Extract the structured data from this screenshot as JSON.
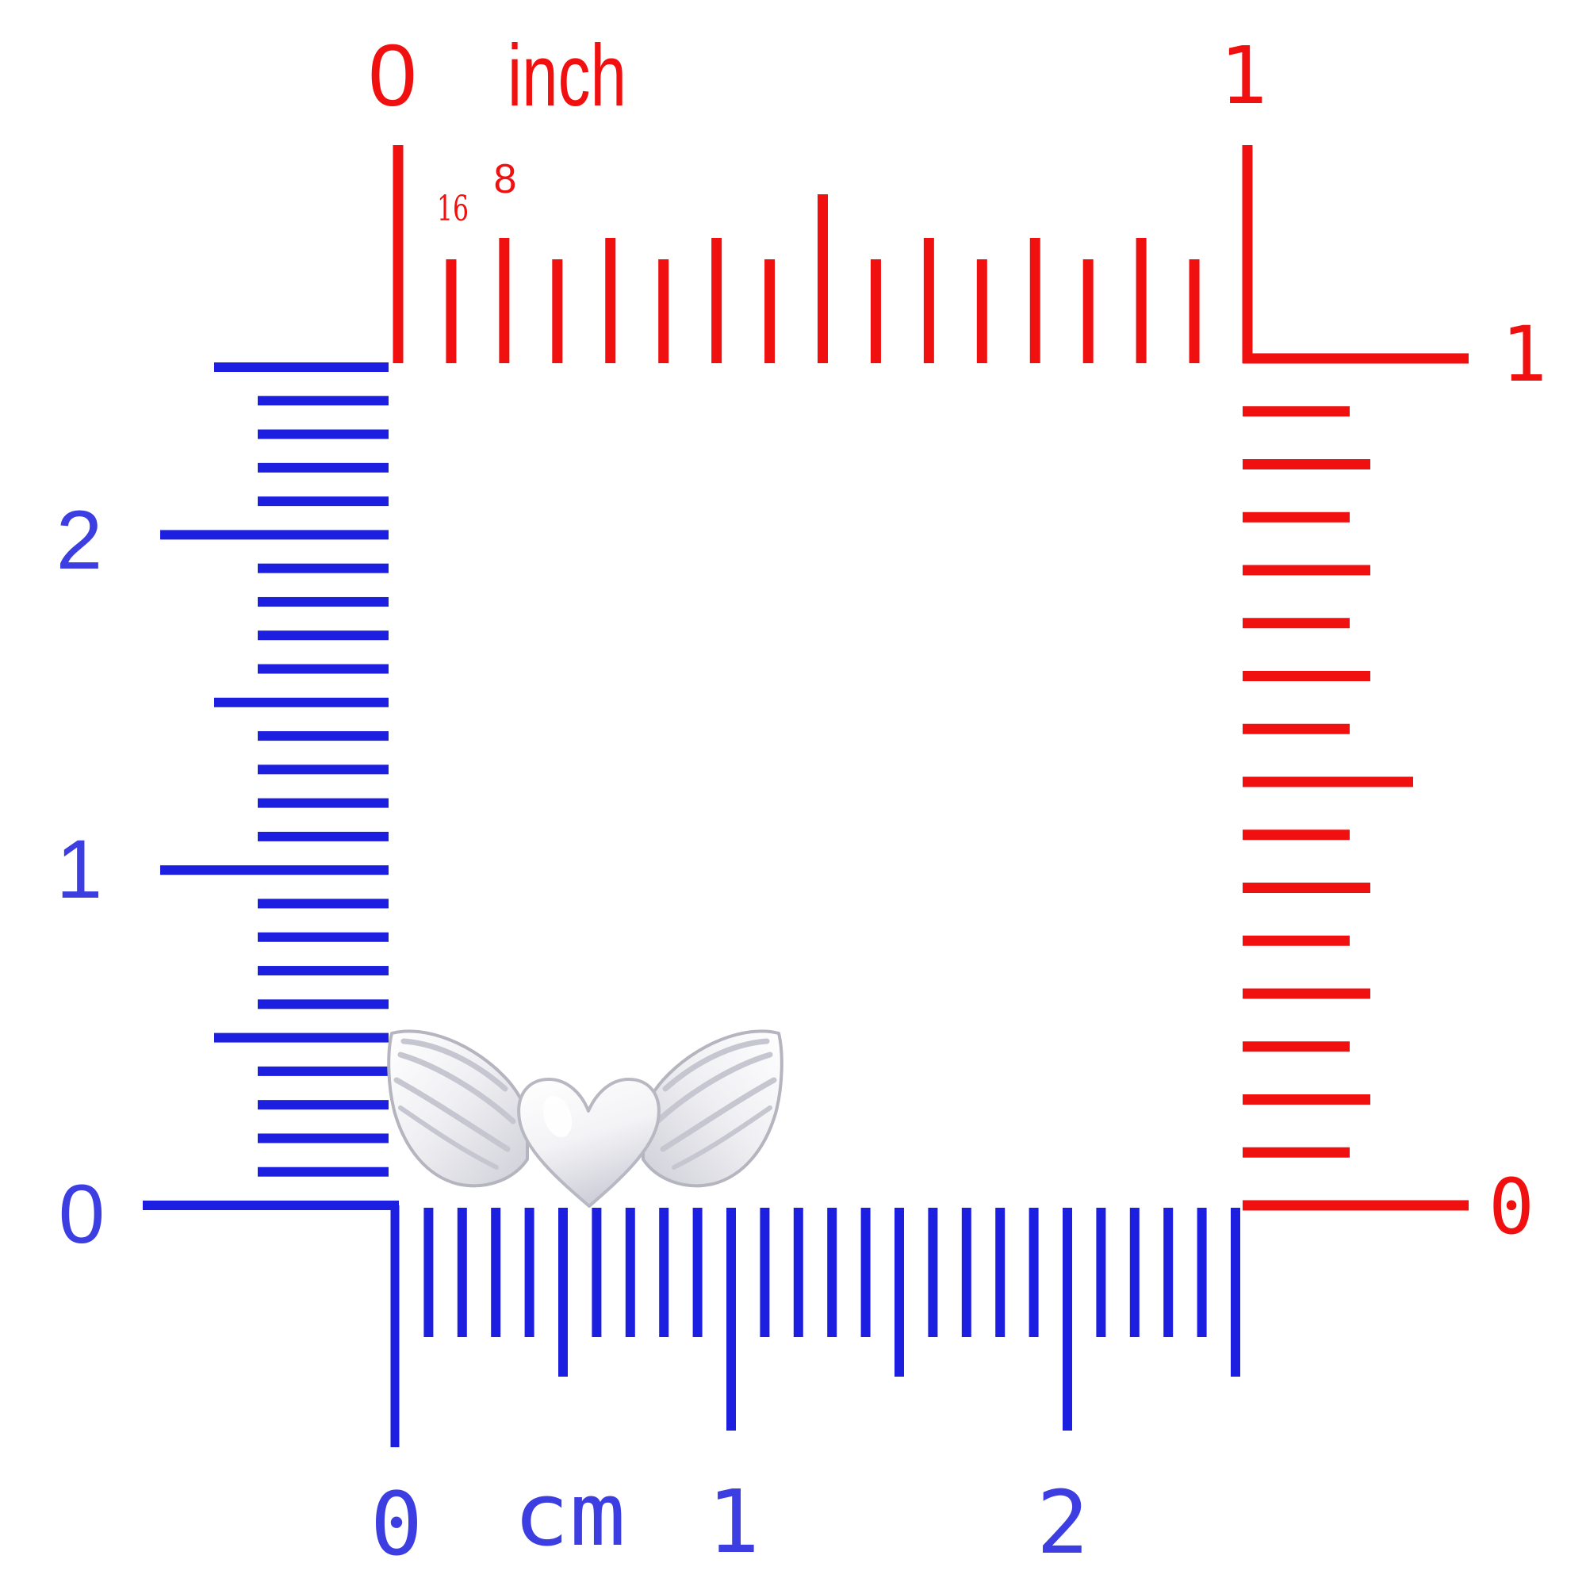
{
  "image_kind": "product size chart with rulers",
  "colors": {
    "background": "#ffffff",
    "inch_red": "#f0100f",
    "cm_blue_tick": "#1c1fe0",
    "cm_blue_label": "#3d3ee2",
    "silver_light": "#ffffff",
    "silver_mid": "#eeeef2",
    "silver_dark": "#cdcdd6",
    "silver_edge": "#b5b5c0"
  },
  "rulers": {
    "top_inch": {
      "orientation": "horizontal",
      "start_label": "0",
      "unit_label": "inch",
      "end_label": "1",
      "sixteenths_label": "16",
      "eighths_label": "8",
      "divisions_per_inch": 16
    },
    "right_inch": {
      "orientation": "vertical",
      "top_label": "1",
      "bottom_label": "0",
      "divisions_per_inch": 16
    },
    "left_cm": {
      "orientation": "vertical",
      "labels_top_to_bottom": [
        "2",
        "1",
        "0"
      ],
      "total_mm": 25,
      "mm_per_cm": 10
    },
    "bottom_cm": {
      "orientation": "horizontal",
      "zero_label": "0",
      "unit_label": "cm",
      "one_label": "1",
      "two_label": "2",
      "total_mm": 25,
      "mm_per_cm": 10
    }
  },
  "product": {
    "name": "silver-winged-heart-charm",
    "description": "Polished silver puffed heart with spread angel wings, resting on the cm ruler baseline",
    "approx_width_mm": 11.5,
    "approx_height_mm": 5
  }
}
